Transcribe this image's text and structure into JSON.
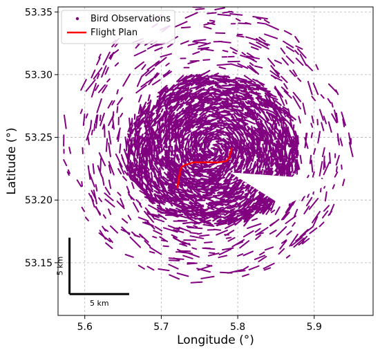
{
  "chart_data": {
    "type": "scatter",
    "title": "",
    "xlabel": "Longitude (°)",
    "ylabel": "Latitude (°)",
    "xlim": [
      5.565,
      5.977
    ],
    "ylim": [
      53.108,
      53.354
    ],
    "xticks": [
      5.6,
      5.7,
      5.8,
      5.9
    ],
    "xtick_labels": [
      "5.6",
      "5.7",
      "5.8",
      "5.9"
    ],
    "yticks": [
      53.15,
      53.2,
      53.25,
      53.3,
      53.35
    ],
    "ytick_labels": [
      "53.15",
      "53.20",
      "53.25",
      "53.30",
      "53.35"
    ],
    "grid": true,
    "legend": {
      "position": "top-left",
      "entries": [
        "Bird Observations",
        "Flight Plan"
      ]
    },
    "colors": {
      "observations": "#800080",
      "flight_plan": "#ff0000",
      "grid": "#b0b0b0"
    },
    "series": [
      {
        "name": "Bird Observations",
        "kind": "scatter-cloud",
        "color": "#800080",
        "center": [
          5.76,
          53.245
        ],
        "extent_lon": [
          5.58,
          5.957
        ],
        "extent_lat": [
          53.12,
          53.342
        ],
        "dense_region_lon": [
          5.655,
          5.88
        ],
        "dense_region_lat": [
          53.18,
          53.3
        ],
        "empty_wedge": [
          [
            5.79,
            53.222
          ],
          [
            5.93,
            53.216
          ],
          [
            5.86,
            53.195
          ]
        ]
      },
      {
        "name": "Flight Plan",
        "kind": "line",
        "color": "#ff0000",
        "x": [
          5.721,
          5.723,
          5.726,
          5.731,
          5.742,
          5.758,
          5.775,
          5.785,
          5.789,
          5.792
        ],
        "y": [
          53.21,
          53.218,
          53.226,
          53.228,
          53.23,
          53.23,
          53.23,
          53.231,
          53.234,
          53.241
        ]
      }
    ],
    "scale_bars": [
      {
        "label": "5 km",
        "orientation": "vertical",
        "lon": 5.58,
        "lat_from": 53.125,
        "lat_to": 53.17
      },
      {
        "label": "5 km",
        "orientation": "horizontal",
        "lat": 53.125,
        "lon_from": 5.58,
        "lon_to": 5.658
      }
    ]
  }
}
